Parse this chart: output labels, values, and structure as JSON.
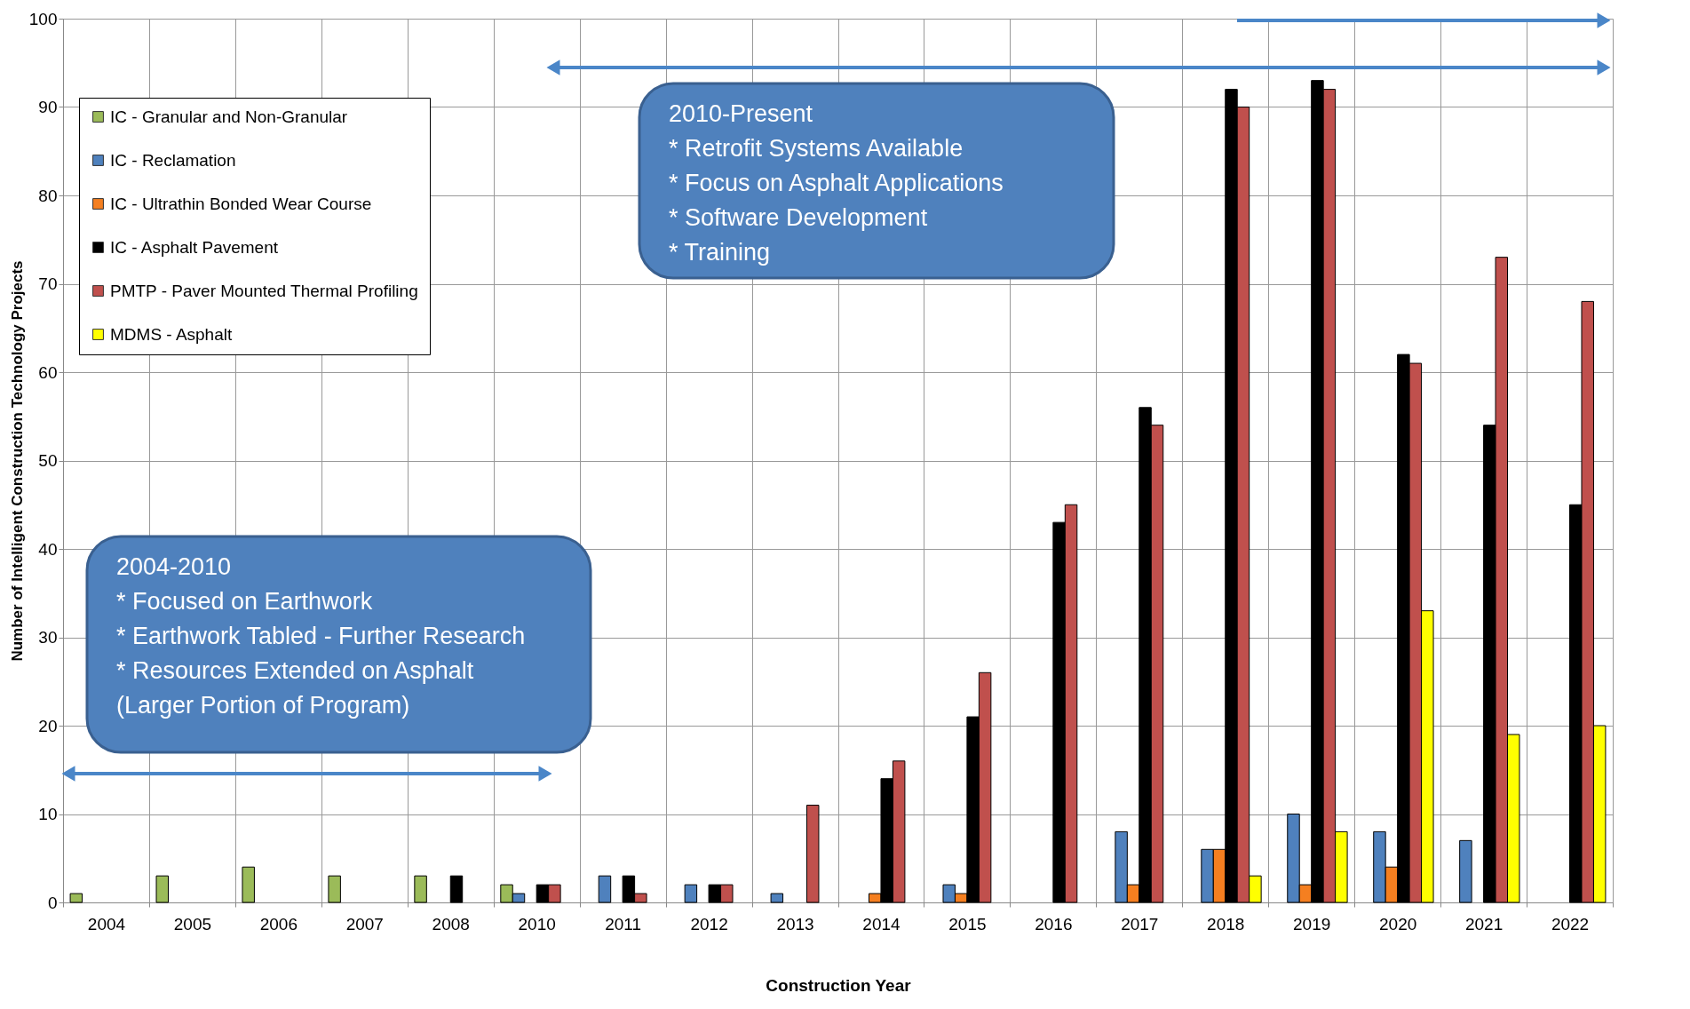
{
  "chart_data": {
    "type": "bar",
    "xlabel": "Construction Year",
    "ylabel": "Number of Intelligent Construction Technology Projects",
    "categories": [
      "2004",
      "2005",
      "2006",
      "2007",
      "2008",
      "2010",
      "2011",
      "2012",
      "2013",
      "2014",
      "2015",
      "2016",
      "2017",
      "2018",
      "2019",
      "2020",
      "2021",
      "2022"
    ],
    "series": [
      {
        "name": "IC -  Granular and Non-Granular",
        "color": "#9bbb59",
        "values": [
          1,
          3,
          4,
          3,
          3,
          2,
          null,
          null,
          null,
          null,
          null,
          null,
          null,
          null,
          null,
          null,
          null,
          null
        ]
      },
      {
        "name": "IC - Reclamation",
        "color": "#4f81bd",
        "values": [
          null,
          null,
          null,
          null,
          null,
          1,
          3,
          2,
          1,
          null,
          2,
          null,
          8,
          6,
          10,
          8,
          7,
          null
        ]
      },
      {
        "name": "IC - Ultrathin Bonded Wear Course",
        "color": "#f57f20",
        "values": [
          null,
          null,
          null,
          null,
          null,
          null,
          null,
          null,
          null,
          1,
          1,
          null,
          2,
          6,
          2,
          4,
          null,
          null
        ]
      },
      {
        "name": "IC - Asphalt Pavement",
        "color": "#000000",
        "values": [
          null,
          null,
          null,
          null,
          3,
          2,
          3,
          2,
          null,
          14,
          21,
          43,
          56,
          92,
          93,
          62,
          54,
          45
        ]
      },
      {
        "name": "PMTP - Paver Mounted Thermal Profiling",
        "color": "#c0504d",
        "values": [
          null,
          null,
          null,
          null,
          null,
          2,
          1,
          2,
          11,
          16,
          26,
          45,
          54,
          90,
          92,
          61,
          73,
          68
        ]
      },
      {
        "name": "MDMS - Asphalt",
        "color": "#ffff00",
        "values": [
          null,
          null,
          null,
          null,
          null,
          null,
          null,
          null,
          null,
          null,
          null,
          null,
          null,
          3,
          8,
          33,
          19,
          20
        ]
      }
    ],
    "ylim": [
      0,
      100
    ],
    "yticks": [
      0,
      10,
      20,
      30,
      40,
      50,
      60,
      70,
      80,
      90,
      100
    ],
    "grid": true,
    "legend": "top left",
    "annotations": [
      "2010-Present\n* Retrofit Systems Available\n* Focus on Asphalt Applications\n* Software Development\n* Training",
      "2004-2010\n* Focused on Earthwork\n* Earthwork Tabled - Further Research\n* Resources Extended on Asphalt\n(Larger Portion of Program)"
    ]
  }
}
